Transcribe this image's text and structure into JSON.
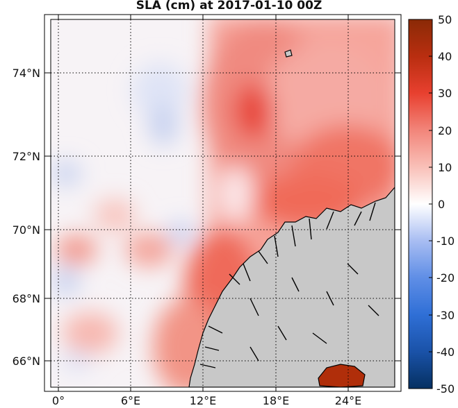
{
  "title": "SLA (cm) at 2017-01-10 00Z",
  "map": {
    "lat_labels": [
      "74°N",
      "72°N",
      "70°N",
      "68°N",
      "66°N"
    ],
    "lon_labels": [
      "0°",
      "6°E",
      "12°E",
      "18°E",
      "24°E"
    ],
    "land_color": "#c8c8c8",
    "coastline_color": "#000000"
  },
  "colorbar": {
    "ticks": [
      "50",
      "40",
      "30",
      "20",
      "10",
      "0",
      "-10",
      "-20",
      "-30",
      "-40",
      "-50"
    ],
    "min": -50,
    "max": 50,
    "colors": [
      "#053061",
      "#2166ac",
      "#4393c3",
      "#92c5de",
      "#d1e5f0",
      "#ffffff",
      "#fddbc7",
      "#f4a582",
      "#e6553a",
      "#c0301a",
      "#7f2704"
    ]
  }
}
